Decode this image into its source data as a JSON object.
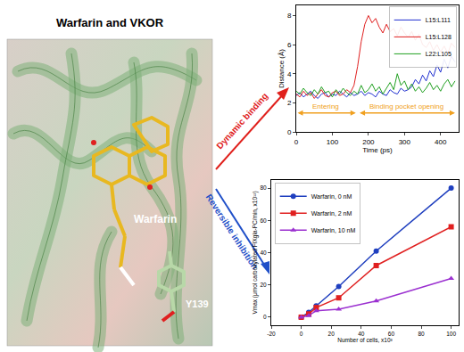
{
  "figure": {
    "panel_title": "Warfarin and VKOR",
    "molecule_labels": [
      "Warfarin",
      "Y139"
    ],
    "arrows": [
      {
        "text": "Dynamic binding",
        "color": "#e0201c"
      },
      {
        "text": "Reversible inhibition",
        "color": "#1f4fc8"
      }
    ]
  },
  "chart_data": [
    {
      "type": "line",
      "x_label": "Time (ps)",
      "y_label": "Distance (Å)",
      "x": [
        0,
        10,
        20,
        30,
        40,
        50,
        60,
        70,
        80,
        90,
        100,
        110,
        120,
        130,
        140,
        150,
        160,
        170,
        180,
        190,
        200,
        210,
        220,
        230,
        240,
        250,
        260,
        270,
        280,
        290,
        300,
        310,
        320,
        330,
        340,
        350,
        360,
        370,
        380,
        390,
        400,
        410,
        420,
        430,
        440
      ],
      "series": [
        {
          "name": "L15:L111",
          "color": "#2030d0",
          "values": [
            2.5,
            2.7,
            2.4,
            2.6,
            2.8,
            2.5,
            2.3,
            2.6,
            2.7,
            2.4,
            2.6,
            2.5,
            2.8,
            2.6,
            2.4,
            2.7,
            2.5,
            2.6,
            2.8,
            2.5,
            2.7,
            2.6,
            2.4,
            2.8,
            2.6,
            2.5,
            2.9,
            2.7,
            2.6,
            3.0,
            2.8,
            2.9,
            3.1,
            3.6,
            3.3,
            3.9,
            3.5,
            4.2,
            3.8,
            4.6,
            4.1,
            5.0,
            4.4,
            5.2,
            4.8
          ]
        },
        {
          "name": "L15:L128",
          "color": "#e02020",
          "values": [
            2.6,
            2.4,
            2.8,
            2.5,
            2.7,
            2.3,
            2.6,
            2.9,
            2.5,
            2.4,
            2.7,
            2.8,
            2.5,
            2.6,
            2.9,
            2.7,
            3.2,
            4.5,
            6.2,
            7.4,
            8.0,
            7.5,
            7.8,
            7.2,
            6.8,
            7.4,
            6.9,
            7.1,
            6.6,
            7.2,
            6.8,
            6.5,
            6.9,
            6.3,
            6.7,
            6.0,
            5.8,
            6.2,
            5.6,
            6.0,
            5.5,
            5.9,
            5.4,
            6.1,
            5.8
          ]
        },
        {
          "name": "L22:L105",
          "color": "#20a020",
          "values": [
            2.8,
            2.6,
            3.0,
            2.7,
            2.5,
            2.9,
            2.6,
            3.1,
            2.7,
            2.8,
            2.4,
            2.9,
            2.6,
            3.0,
            2.7,
            2.5,
            2.8,
            2.6,
            3.2,
            2.7,
            2.9,
            3.3,
            2.8,
            3.1,
            2.6,
            3.0,
            3.4,
            2.9,
            4.0,
            3.2,
            3.5,
            2.9,
            3.3,
            2.8,
            3.1,
            2.7,
            3.0,
            3.4,
            2.9,
            3.2,
            2.8,
            3.3,
            3.6,
            3.1,
            3.5
          ]
        }
      ],
      "xlim": [
        0,
        450
      ],
      "xticks": [
        0,
        100,
        200,
        300,
        400
      ],
      "ylim": [
        0,
        8.7
      ],
      "yticks": [
        0,
        2,
        4,
        6,
        8
      ],
      "legend": "upper right",
      "annotations": [
        {
          "text": "Entering",
          "x": [
            0,
            165
          ],
          "y": 1.3,
          "color": "#f0a020"
        },
        {
          "text": "Binding pocket opening",
          "x": [
            172,
            440
          ],
          "y": 1.3,
          "color": "#f0a020"
        }
      ]
    },
    {
      "type": "scatter",
      "x_label": "Number of cells, x10³",
      "y_label": "Vmax (μmol carboxylated FIXgla-PC/min, x10¹²)",
      "x": [
        0,
        5,
        10,
        25,
        50,
        100
      ],
      "series": [
        {
          "name": "Warfarin, 0 nM",
          "color": "#1f3fbf",
          "marker": "circle",
          "values": [
            0,
            3,
            7,
            19,
            41,
            80
          ]
        },
        {
          "name": "Warfarin, 2 nM",
          "color": "#e02020",
          "marker": "square",
          "values": [
            0,
            2,
            6,
            12,
            32,
            56
          ]
        },
        {
          "name": "Warfarin, 10 nM",
          "color": "#9b30d0",
          "marker": "triangle-up",
          "values": [
            0,
            1,
            4,
            5,
            10,
            24
          ]
        }
      ],
      "line_style": "solid",
      "xlim": [
        -20,
        105
      ],
      "xticks": [
        -20,
        0,
        20,
        40,
        60,
        80,
        100
      ],
      "ylim": [
        -5,
        85
      ],
      "yticks": [
        0,
        20,
        40,
        60,
        80
      ],
      "legend": "upper left"
    }
  ]
}
